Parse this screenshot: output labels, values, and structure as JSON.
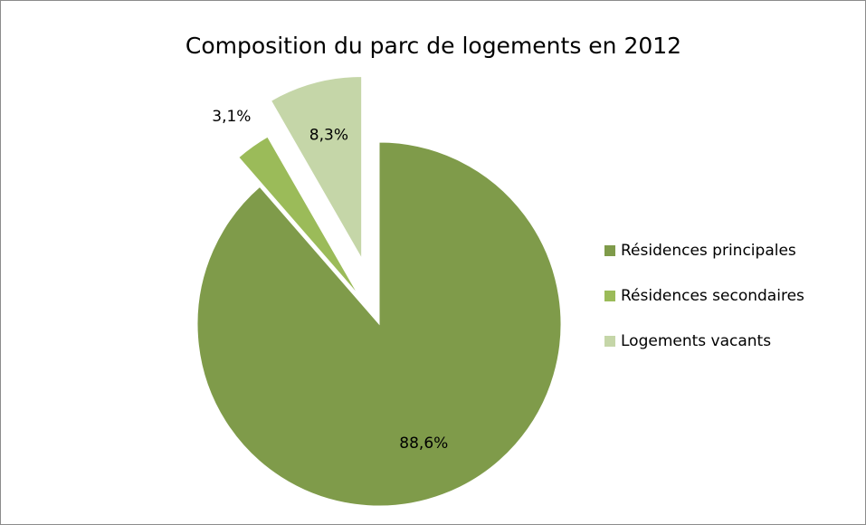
{
  "chart_data": {
    "type": "pie",
    "title": "Composition du parc de logements en 2012",
    "categories": [
      "Résidences principales",
      "Résidences secondaires",
      "Logements vacants"
    ],
    "values": [
      88.6,
      3.1,
      8.3
    ],
    "value_labels": [
      "88,6%",
      "3,1%",
      "8,3%"
    ],
    "colors": [
      "#7f9b4a",
      "#9bbb59",
      "#c5d6a8"
    ],
    "legend": "right"
  }
}
